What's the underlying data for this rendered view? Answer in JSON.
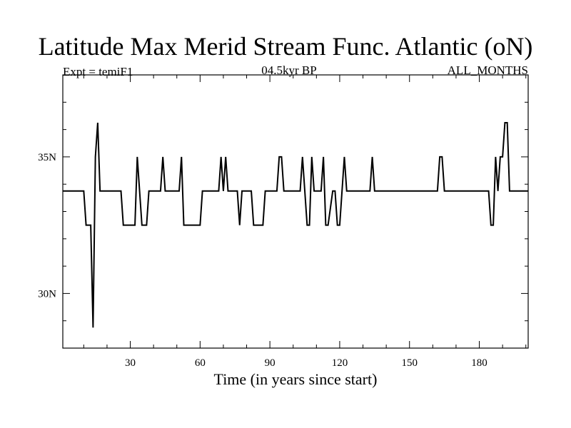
{
  "title": "Latitude Max Merid Stream Func. Atlantic (oN)",
  "left_label": "Expt = temiF1",
  "center_label": "04.5kyr BP",
  "right_label": "ALL_MONTHS",
  "chart_data": {
    "type": "line",
    "xlabel": "Time (in years since start)",
    "ylabel": "",
    "xlim": [
      1,
      201
    ],
    "ylim": [
      28,
      38
    ],
    "x_ticks": [
      30,
      60,
      90,
      120,
      150,
      180
    ],
    "x_tick_labels": [
      "30",
      "60",
      "90",
      "120",
      "150",
      "180"
    ],
    "y_ticks": [
      30,
      35
    ],
    "y_tick_labels": [
      "30N",
      "35N"
    ],
    "series": [
      {
        "name": "",
        "color": "#000000",
        "x": [
          1,
          10,
          11,
          13,
          14,
          15,
          16,
          17,
          26,
          27,
          32,
          33,
          35,
          37,
          38,
          43,
          44,
          45,
          51,
          52,
          53,
          60,
          61,
          68,
          69,
          70,
          71,
          72,
          76,
          77,
          78,
          82,
          83,
          87,
          88,
          93,
          94,
          95,
          96,
          103,
          104,
          105,
          106,
          107,
          108,
          109,
          110,
          112,
          113,
          114,
          115,
          117,
          118,
          119,
          120,
          122,
          123,
          124,
          133,
          134,
          135,
          162,
          163,
          164,
          165,
          184,
          185,
          186,
          187,
          188,
          189,
          190,
          191,
          192,
          193,
          194,
          201
        ],
        "y": [
          33.75,
          33.75,
          32.5,
          32.5,
          28.75,
          35,
          36.25,
          33.75,
          33.75,
          32.5,
          32.5,
          35,
          32.5,
          32.5,
          33.75,
          33.75,
          35,
          33.75,
          33.75,
          35,
          32.5,
          32.5,
          33.75,
          33.75,
          35,
          33.75,
          35,
          33.75,
          33.75,
          32.5,
          33.75,
          33.75,
          32.5,
          32.5,
          33.75,
          33.75,
          35,
          35,
          33.75,
          33.75,
          35,
          33.75,
          32.5,
          32.5,
          35,
          33.75,
          33.75,
          33.75,
          35,
          32.5,
          32.5,
          33.75,
          33.75,
          32.5,
          32.5,
          35,
          33.75,
          33.75,
          33.75,
          35,
          33.75,
          33.75,
          35,
          35,
          33.75,
          33.75,
          32.5,
          32.5,
          35,
          33.75,
          35,
          35,
          36.25,
          36.25,
          33.75,
          33.75,
          33.75
        ]
      }
    ]
  }
}
